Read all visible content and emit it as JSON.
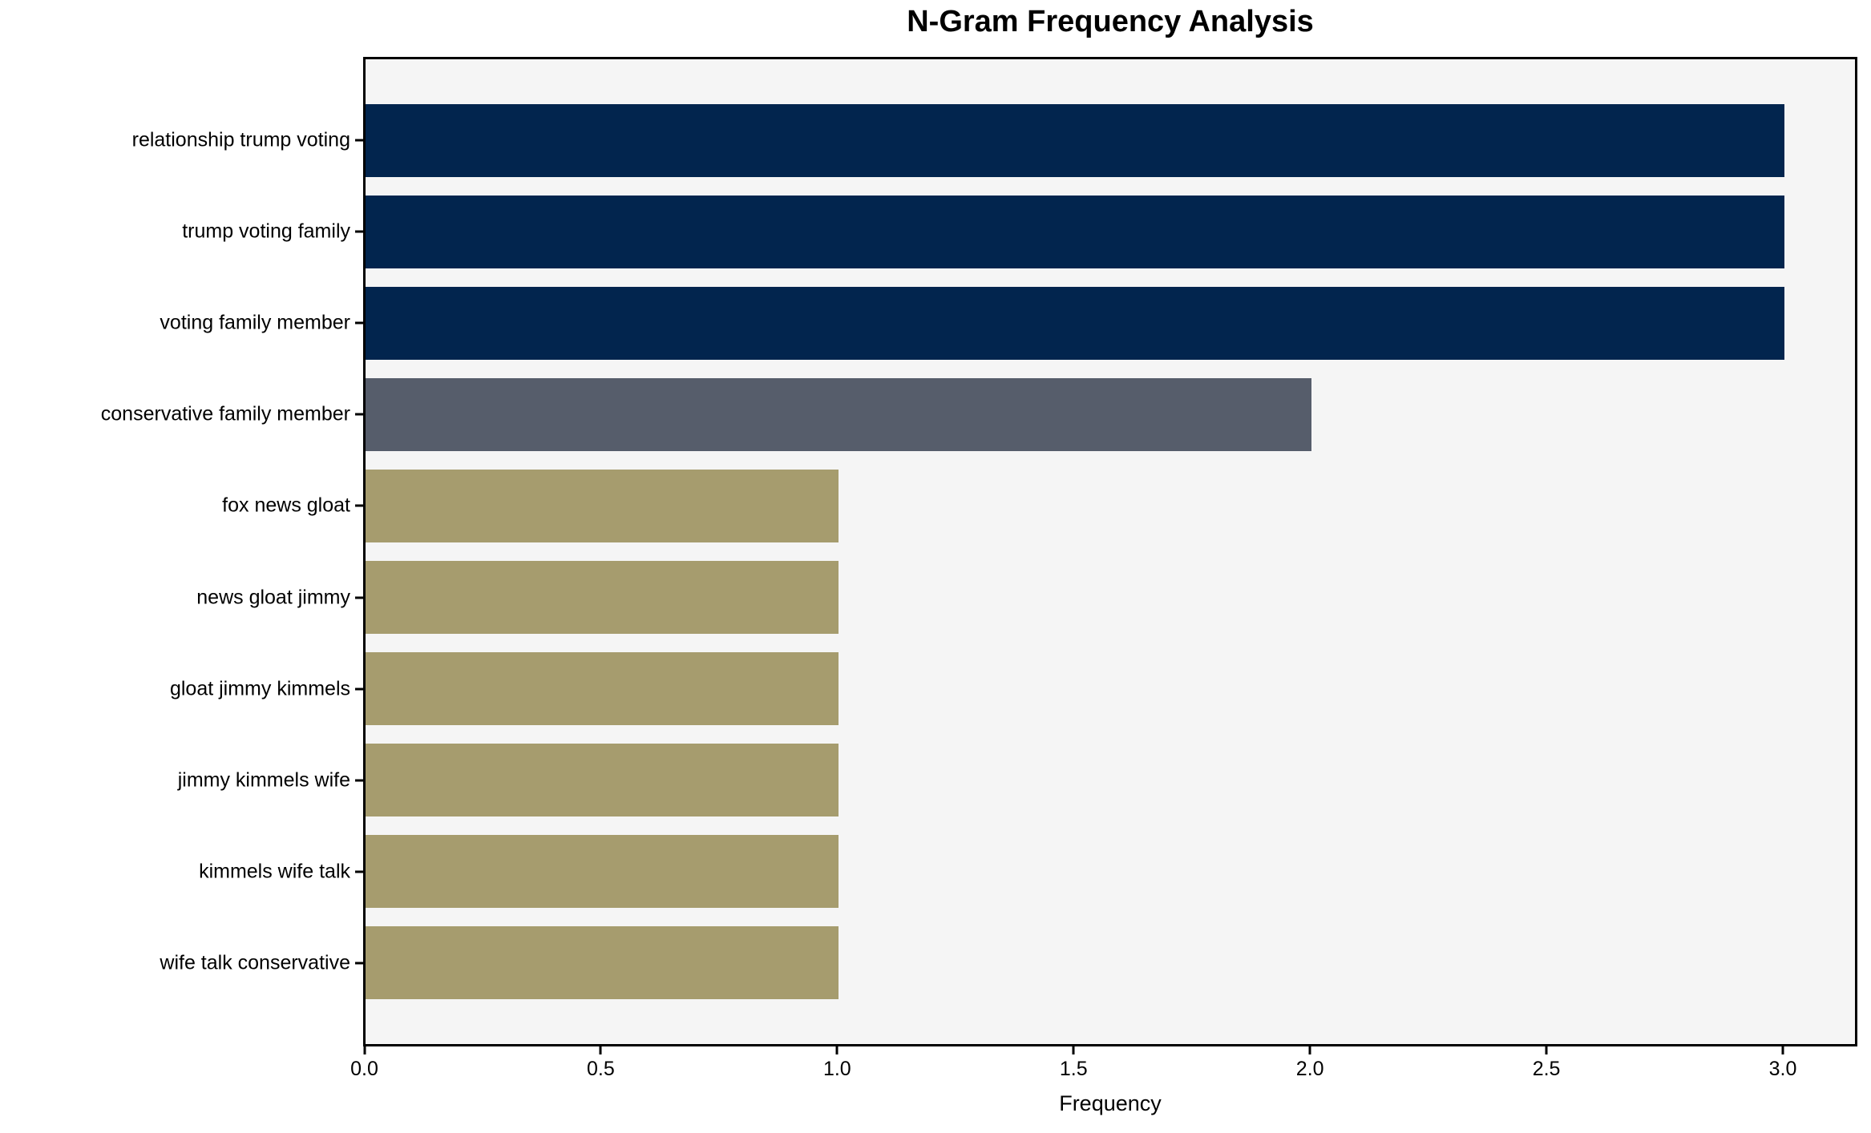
{
  "chart_data": {
    "type": "bar",
    "orientation": "horizontal",
    "title": "N-Gram Frequency Analysis",
    "xlabel": "Frequency",
    "ylabel": "",
    "categories": [
      "relationship trump voting",
      "trump voting family",
      "voting family member",
      "conservative family member",
      "fox news gloat",
      "news gloat jimmy",
      "gloat jimmy kimmels",
      "jimmy kimmels wife",
      "kimmels wife talk",
      "wife talk conservative"
    ],
    "values": [
      3,
      3,
      3,
      2,
      1,
      1,
      1,
      1,
      1,
      1
    ],
    "bar_colors": [
      "#02254e",
      "#02254e",
      "#02254e",
      "#565d6b",
      "#a69c6e",
      "#a69c6e",
      "#a69c6e",
      "#a69c6e",
      "#a69c6e",
      "#a69c6e"
    ],
    "xlim": [
      0,
      3.15
    ],
    "xticks": [
      0.0,
      0.5,
      1.0,
      1.5,
      2.0,
      2.5,
      3.0
    ],
    "xtick_labels": [
      "0.0",
      "0.5",
      "1.0",
      "1.5",
      "2.0",
      "2.5",
      "3.0"
    ],
    "grid": false,
    "legend_position": "none",
    "plot_background": "#f5f5f5",
    "figure_background": "#ffffff",
    "accent_colors": {
      "high_frequency": "#02254e",
      "mid_frequency": "#565d6b",
      "low_frequency": "#a69c6e"
    }
  }
}
